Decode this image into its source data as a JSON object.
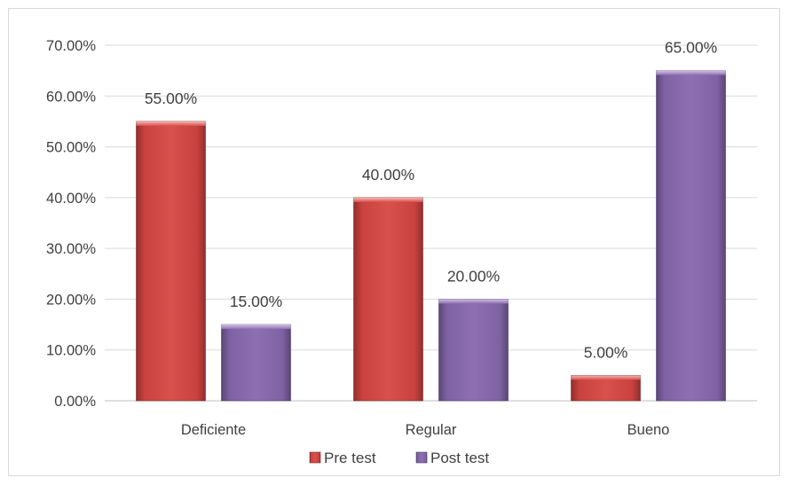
{
  "chart_data": {
    "type": "bar",
    "categories": [
      "Deficiente",
      "Regular",
      "Bueno"
    ],
    "series": [
      {
        "name": "Pre test",
        "values": [
          55.0,
          40.0,
          5.0
        ],
        "labels": [
          "55.00%",
          "40.00%",
          "5.00%"
        ],
        "color": "#c0504d"
      },
      {
        "name": "Post test",
        "values": [
          15.0,
          20.0,
          65.0
        ],
        "labels": [
          "15.00%",
          "20.00%",
          "65.00%"
        ],
        "color": "#8064a2"
      }
    ],
    "ylim": [
      0,
      70
    ],
    "yticks": [
      0,
      10,
      20,
      30,
      40,
      50,
      60,
      70
    ],
    "ytick_labels": [
      "0.00%",
      "10.00%",
      "20.00%",
      "30.00%",
      "40.00%",
      "50.00%",
      "60.00%",
      "70.00%"
    ],
    "grid": true,
    "legend_position": "bottom"
  }
}
